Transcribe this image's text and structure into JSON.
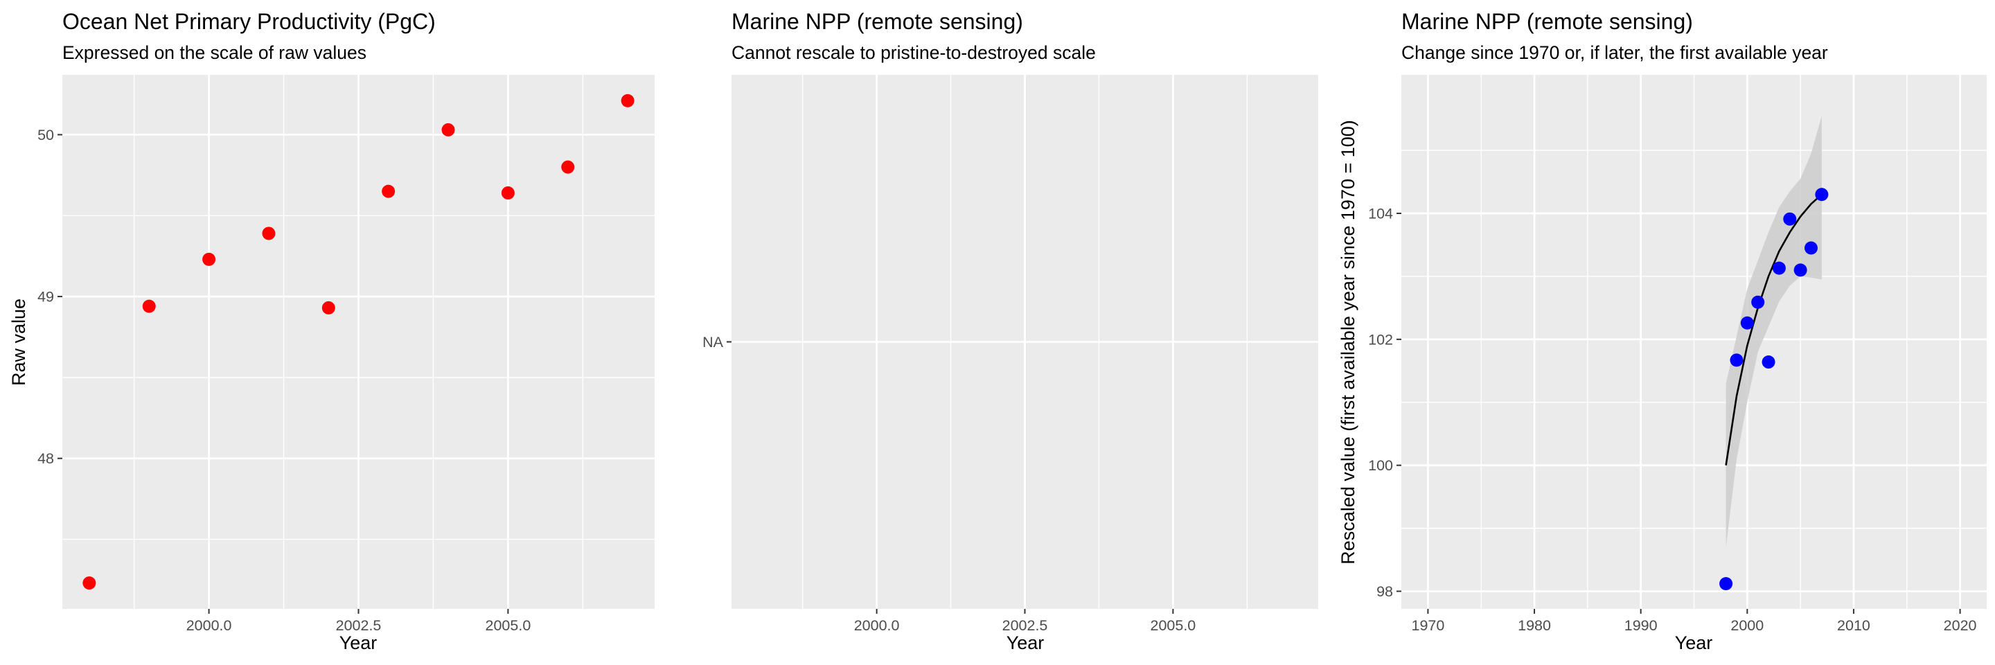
{
  "colors": {
    "panel_bg": "#ebebeb",
    "grid": "#ffffff",
    "point_red": "#ff0000",
    "point_blue": "#0000ff",
    "fit_line": "#000000",
    "ribbon": "#cccccc"
  },
  "chart_data": [
    {
      "type": "scatter",
      "title": "Ocean Net Primary Productivity (PgC)",
      "subtitle": "Expressed on the scale of raw values",
      "xlabel": "Year",
      "ylabel": "Raw value",
      "xlim": [
        1997.55,
        2007.45
      ],
      "ylim": [
        47.07,
        50.37
      ],
      "xticks": [
        2000.0,
        2002.5,
        2005.0
      ],
      "xtick_labels": [
        "2000.0",
        "2002.5",
        "2005.0"
      ],
      "yticks": [
        48,
        49,
        50
      ],
      "ytick_labels": [
        "48",
        "49",
        "50"
      ],
      "grid": true,
      "point_color": "red",
      "points": [
        {
          "x": 1998,
          "y": 47.23
        },
        {
          "x": 1999,
          "y": 48.94
        },
        {
          "x": 2000,
          "y": 49.23
        },
        {
          "x": 2001,
          "y": 49.39
        },
        {
          "x": 2002,
          "y": 48.93
        },
        {
          "x": 2003,
          "y": 49.65
        },
        {
          "x": 2004,
          "y": 50.03
        },
        {
          "x": 2005,
          "y": 49.64
        },
        {
          "x": 2006,
          "y": 49.8
        },
        {
          "x": 2007,
          "y": 50.21
        }
      ]
    },
    {
      "type": "scatter",
      "title": "Marine NPP (remote sensing)",
      "subtitle": "Cannot rescale to pristine-to-destroyed scale",
      "xlabel": "Year",
      "ylabel": "",
      "xlim": [
        1997.55,
        2007.45
      ],
      "xticks": [
        2000.0,
        2002.5,
        2005.0
      ],
      "xtick_labels": [
        "2000.0",
        "2002.5",
        "2005.0"
      ],
      "ytick_labels": [
        "NA"
      ],
      "grid": true,
      "points": []
    },
    {
      "type": "scatter",
      "title": "Marine NPP (remote sensing)",
      "subtitle": "Change since 1970 or, if later, the first available year",
      "xlabel": "Year",
      "ylabel": "Rescaled value (first available year since 1970 = 100)",
      "xlim": [
        1967.5,
        2022.5
      ],
      "ylim": [
        97.72,
        106.2
      ],
      "xticks": [
        1970,
        1980,
        1990,
        2000,
        2010,
        2020
      ],
      "xtick_labels": [
        "1970",
        "1980",
        "1990",
        "2000",
        "2010",
        "2020"
      ],
      "yticks": [
        98,
        100,
        102,
        104
      ],
      "ytick_labels": [
        "98",
        "100",
        "102",
        "104"
      ],
      "grid": true,
      "point_color": "blue",
      "points": [
        {
          "x": 1998,
          "y": 98.12
        },
        {
          "x": 1999,
          "y": 101.67
        },
        {
          "x": 2000,
          "y": 102.26
        },
        {
          "x": 2001,
          "y": 102.59
        },
        {
          "x": 2002,
          "y": 101.64
        },
        {
          "x": 2003,
          "y": 103.13
        },
        {
          "x": 2004,
          "y": 103.91
        },
        {
          "x": 2005,
          "y": 103.1
        },
        {
          "x": 2006,
          "y": 103.45
        },
        {
          "x": 2007,
          "y": 104.3
        }
      ],
      "fit": {
        "x": [
          1998,
          1999,
          2000,
          2001,
          2002,
          2003,
          2004,
          2005,
          2006,
          2007
        ],
        "y": [
          100.0,
          101.1,
          101.9,
          102.5,
          103.0,
          103.4,
          103.7,
          103.95,
          104.15,
          104.3
        ],
        "lower": [
          98.7,
          100.1,
          101.0,
          101.8,
          102.2,
          102.6,
          102.85,
          103.0,
          102.98,
          102.95
        ],
        "upper": [
          101.3,
          102.05,
          102.8,
          103.25,
          103.7,
          104.1,
          104.35,
          104.55,
          104.95,
          105.55
        ]
      }
    }
  ]
}
